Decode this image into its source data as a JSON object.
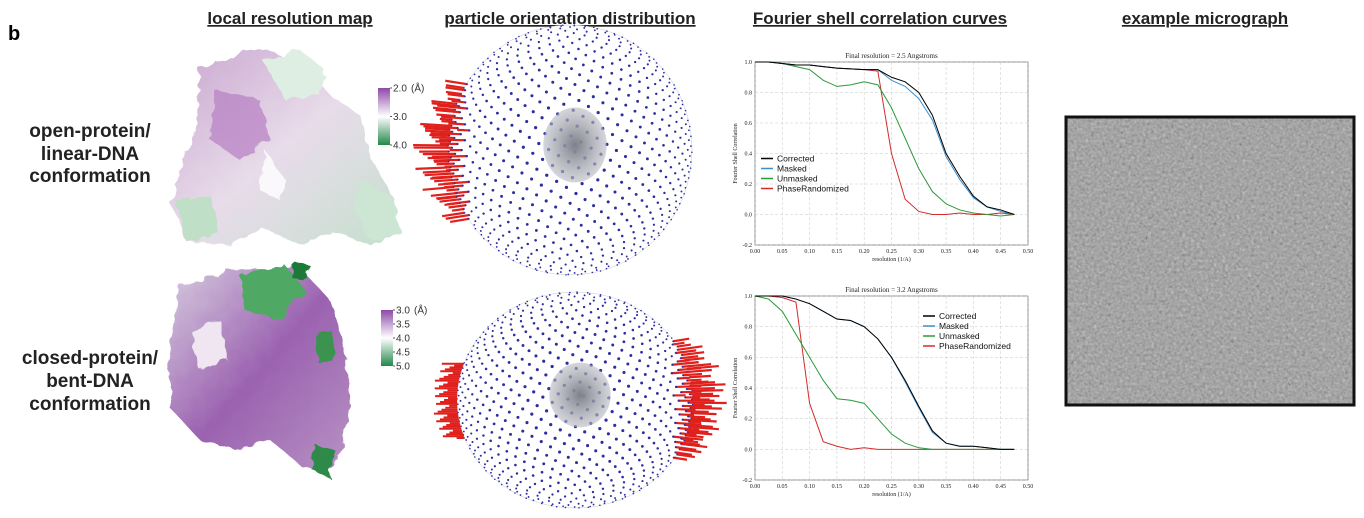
{
  "panel_label": "b",
  "headers": [
    "local resolution map",
    "particle orientation distribution",
    "Fourier shell correlation curves",
    "example micrograph"
  ],
  "row_labels": [
    [
      "open-protein/",
      "linear-DNA",
      "conformation"
    ],
    [
      "closed-protein/",
      "bent-DNA",
      "conformation"
    ]
  ],
  "colorbars": [
    {
      "unit": "(Å)",
      "lim": [
        2.0,
        4.0
      ],
      "colors": [
        "#8c4aa8",
        "#ffffff",
        "#23884a"
      ],
      "ticks": [
        {
          "value": 2.0,
          "label": "2.0"
        },
        {
          "value": 3.0,
          "label": "3.0"
        },
        {
          "value": 4.0,
          "label": "4.0"
        }
      ]
    },
    {
      "unit": "(Å)",
      "lim": [
        3.0,
        5.0
      ],
      "colors": [
        "#8c4aa8",
        "#ffffff",
        "#23884a"
      ],
      "ticks": [
        {
          "value": 3.0,
          "label": "3.0"
        },
        3.5,
        {
          "value": 4.0,
          "label": "4.0"
        },
        4.5,
        {
          "value": 5.0,
          "label": "5.0"
        }
      ]
    }
  ],
  "chart_data": [
    {
      "type": "line",
      "title": "Final resolution =  2.5 Angstroms",
      "xlabel": "resolution (1/A)",
      "ylabel": "Fourier Shell Correlation",
      "legend": "center left",
      "grid": true,
      "xlim": [
        0,
        0.5
      ],
      "ylim": [
        -0.2,
        1.0
      ],
      "xticks": [
        {
          "value": 0,
          "label": "0.00"
        },
        {
          "value": 0.05,
          "label": "0.05"
        },
        {
          "value": 0.1,
          "label": "0.10"
        },
        {
          "value": 0.15,
          "label": "0.15"
        },
        {
          "value": 0.2,
          "label": "0.20"
        },
        {
          "value": 0.25,
          "label": "0.25"
        },
        {
          "value": 0.3,
          "label": "0.30"
        },
        {
          "value": 0.35,
          "label": "0.35"
        },
        {
          "value": 0.4,
          "label": "0.40"
        },
        {
          "value": 0.45,
          "label": "0.45"
        },
        {
          "value": 0.5,
          "label": "0.50"
        }
      ],
      "yticks": [
        -0.2,
        {
          "value": 0,
          "label": "0.0"
        },
        0.2,
        0.4,
        0.6,
        0.8,
        {
          "value": 1.0,
          "label": "1.0"
        }
      ],
      "x": [
        0,
        0.025,
        0.05,
        0.075,
        0.1,
        0.125,
        0.15,
        0.175,
        0.2,
        0.225,
        0.25,
        0.275,
        0.3,
        0.325,
        0.35,
        0.375,
        0.4,
        0.425,
        0.45,
        0.475
      ],
      "series": [
        {
          "name": "Corrected",
          "color": "#000000",
          "values": [
            1.0,
            1.0,
            0.99,
            0.98,
            0.98,
            0.97,
            0.96,
            0.955,
            0.95,
            0.95,
            0.9,
            0.87,
            0.8,
            0.65,
            0.4,
            0.25,
            0.12,
            0.05,
            0.03,
            0.0
          ]
        },
        {
          "name": "Masked",
          "color": "#3b8fd0",
          "values": [
            1.0,
            1.0,
            0.99,
            0.98,
            0.98,
            0.97,
            0.96,
            0.955,
            0.95,
            0.95,
            0.88,
            0.84,
            0.76,
            0.62,
            0.38,
            0.23,
            0.11,
            0.05,
            0.02,
            0.0
          ]
        },
        {
          "name": "Unmasked",
          "color": "#2a9a3a",
          "values": [
            1.0,
            1.0,
            0.99,
            0.97,
            0.95,
            0.88,
            0.84,
            0.85,
            0.87,
            0.85,
            0.7,
            0.5,
            0.3,
            0.15,
            0.07,
            0.03,
            0.01,
            0.0,
            -0.01,
            0.0
          ]
        },
        {
          "name": "PhaseRandomized",
          "color": "#d42a2a",
          "values": [
            1.0,
            1.0,
            0.99,
            0.98,
            0.98,
            0.97,
            0.96,
            0.955,
            0.95,
            0.94,
            0.4,
            0.1,
            0.02,
            0.0,
            0.0,
            0.01,
            0.0,
            0.0,
            0.01,
            0.0
          ]
        }
      ]
    },
    {
      "type": "line",
      "title": "Final resolution =  3.2 Angstroms",
      "xlabel": "resolution (1/A)",
      "ylabel": "Fourier Shell Correlation",
      "legend": "upper right",
      "grid": true,
      "xlim": [
        0,
        0.5
      ],
      "ylim": [
        -0.2,
        1.0
      ],
      "xticks": [
        {
          "value": 0,
          "label": "0.00"
        },
        {
          "value": 0.05,
          "label": "0.05"
        },
        {
          "value": 0.1,
          "label": "0.10"
        },
        {
          "value": 0.15,
          "label": "0.15"
        },
        {
          "value": 0.2,
          "label": "0.20"
        },
        {
          "value": 0.25,
          "label": "0.25"
        },
        {
          "value": 0.3,
          "label": "0.30"
        },
        {
          "value": 0.35,
          "label": "0.35"
        },
        {
          "value": 0.4,
          "label": "0.40"
        },
        {
          "value": 0.45,
          "label": "0.45"
        },
        {
          "value": 0.5,
          "label": "0.50"
        }
      ],
      "yticks": [
        -0.2,
        {
          "value": 0,
          "label": "0.0"
        },
        0.2,
        0.4,
        0.6,
        0.8,
        {
          "value": 1.0,
          "label": "1.0"
        }
      ],
      "x": [
        0,
        0.025,
        0.05,
        0.075,
        0.1,
        0.125,
        0.15,
        0.175,
        0.2,
        0.225,
        0.25,
        0.275,
        0.3,
        0.325,
        0.35,
        0.375,
        0.4,
        0.425,
        0.45,
        0.475
      ],
      "series": [
        {
          "name": "Corrected",
          "color": "#000000",
          "values": [
            1.0,
            1.0,
            1.0,
            0.98,
            0.95,
            0.9,
            0.85,
            0.84,
            0.8,
            0.72,
            0.6,
            0.45,
            0.28,
            0.12,
            0.04,
            0.02,
            0.02,
            0.01,
            0.0,
            0.0
          ]
        },
        {
          "name": "Masked",
          "color": "#3b8fd0",
          "values": [
            1.0,
            1.0,
            1.0,
            0.98,
            0.95,
            0.9,
            0.85,
            0.84,
            0.8,
            0.72,
            0.6,
            0.44,
            0.27,
            0.11,
            0.04,
            0.02,
            0.02,
            0.01,
            0.0,
            0.0
          ]
        },
        {
          "name": "Unmasked",
          "color": "#2a9a3a",
          "values": [
            1.0,
            0.98,
            0.9,
            0.75,
            0.6,
            0.45,
            0.33,
            0.32,
            0.3,
            0.2,
            0.1,
            0.04,
            0.01,
            0.0,
            0.0,
            0.0,
            0.0,
            0.0,
            0.0,
            0.0
          ]
        },
        {
          "name": "PhaseRandomized",
          "color": "#d42a2a",
          "values": [
            1.0,
            1.0,
            0.99,
            0.96,
            0.3,
            0.05,
            0.02,
            0.0,
            0.01,
            0.0,
            0.0,
            0.0,
            0.0,
            0.0,
            0.0,
            0.0,
            0.0,
            0.0,
            0.0,
            0.0
          ]
        }
      ]
    }
  ]
}
